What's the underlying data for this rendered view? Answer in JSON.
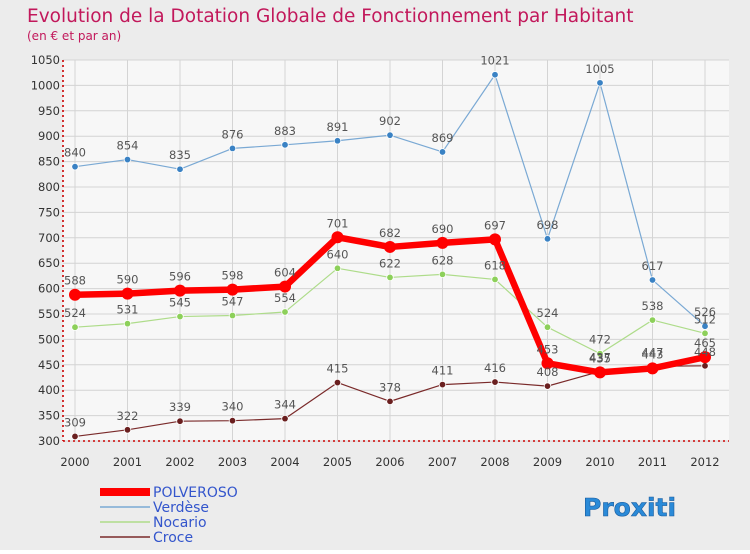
{
  "title": "Evolution de la Dotation Globale de Fonctionnement par Habitant",
  "subtitle": "(en € et par an)",
  "brand": "Proxiti",
  "colors": {
    "title": "#c2185b",
    "frame_bg": "#ececec",
    "plot_bg": "#f7f7f7",
    "grid": "#d4d4d4",
    "axis_marks": "#cc0000",
    "text": "#333333",
    "label": "#555555",
    "legend_text": "#3355cc"
  },
  "chart_data": {
    "type": "line",
    "x": [
      2000,
      2001,
      2002,
      2003,
      2004,
      2005,
      2006,
      2007,
      2008,
      2009,
      2010,
      2011,
      2012
    ],
    "ylim": [
      300,
      1050
    ],
    "yticks": [
      300,
      350,
      400,
      450,
      500,
      550,
      600,
      650,
      700,
      750,
      800,
      850,
      900,
      950,
      1000,
      1050
    ],
    "grid": true,
    "legend_position": "bottom-left",
    "series": [
      {
        "name": "POLVEROSO",
        "color": "#ff0000",
        "marker": "#ff0000",
        "width": 6.5,
        "values": [
          588,
          590,
          596,
          598,
          604,
          701,
          682,
          690,
          697,
          453,
          435,
          443,
          465
        ]
      },
      {
        "name": "Verdèse",
        "color": "#7aa9d4",
        "marker": "#3a82c4",
        "width": 1.2,
        "values": [
          840,
          854,
          835,
          876,
          883,
          891,
          902,
          869,
          1021,
          698,
          1005,
          617,
          526
        ]
      },
      {
        "name": "Nocario",
        "color": "#aedc8a",
        "marker": "#8dd05a",
        "width": 1.2,
        "values": [
          524,
          531,
          545,
          547,
          554,
          640,
          622,
          628,
          618,
          524,
          472,
          538,
          512
        ]
      },
      {
        "name": "Croce",
        "color": "#7a2a2a",
        "marker": "#6a1f1f",
        "width": 1.2,
        "values": [
          309,
          322,
          339,
          340,
          344,
          415,
          378,
          411,
          416,
          408,
          437,
          447,
          448
        ]
      }
    ]
  }
}
